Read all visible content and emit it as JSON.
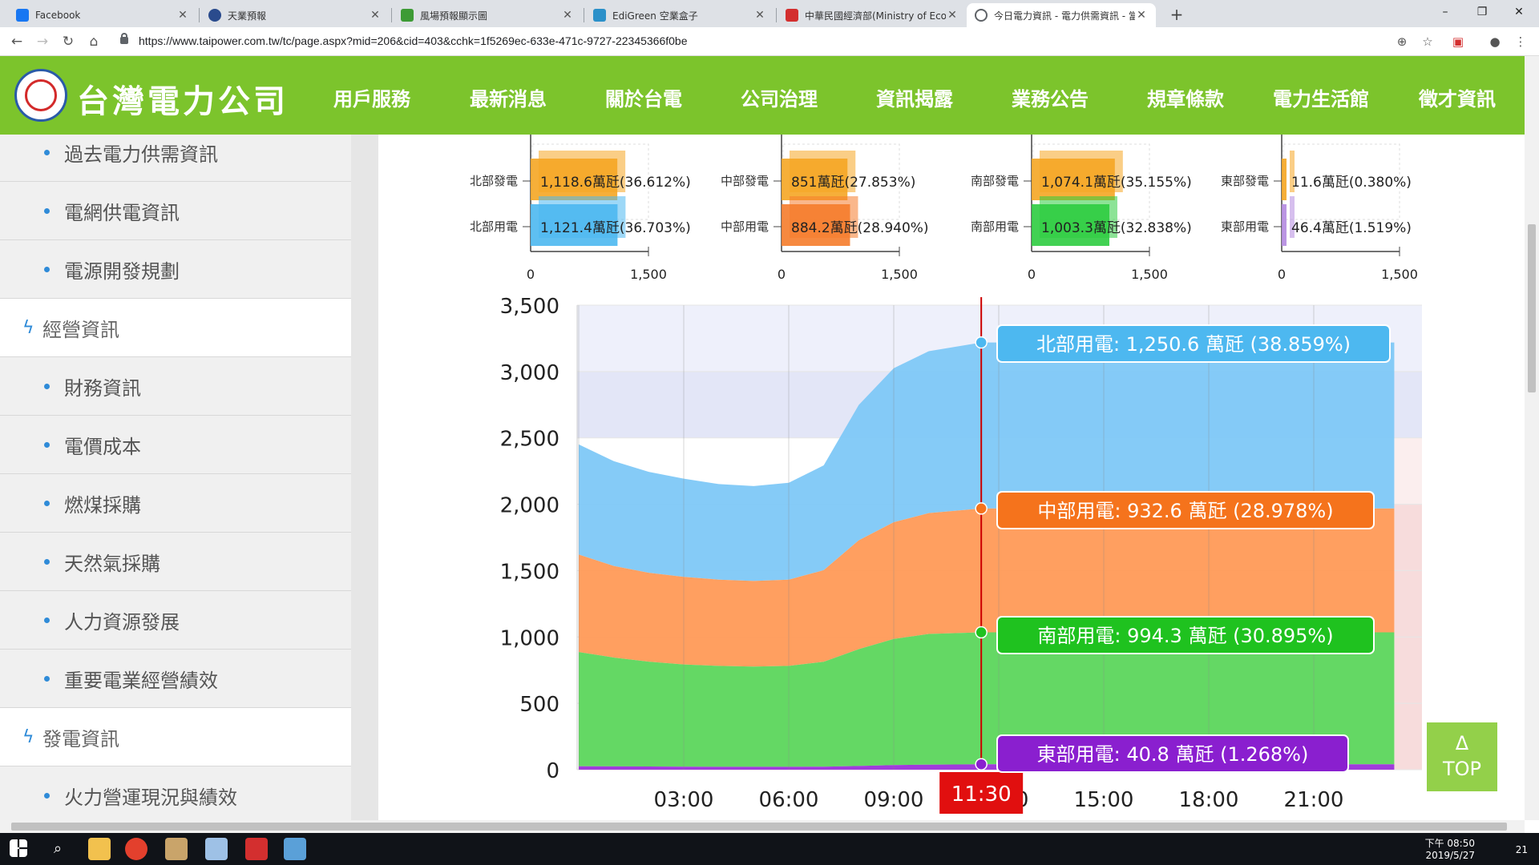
{
  "browser": {
    "tabs": [
      {
        "label": "Facebook",
        "color": "#1877f2"
      },
      {
        "label": "天業預報",
        "color": "#2a4b8d"
      },
      {
        "label": "風場預報顯示圖",
        "color": "#3d9b35"
      },
      {
        "label": "EdiGreen 空業盒子",
        "color": "#2b90c9"
      },
      {
        "label": "中華民國經濟部(Ministry of Eco",
        "color": "#d32f2f"
      },
      {
        "label": "今日電力資訊 - 電力供需資訊 - 當",
        "color": "#5f6368"
      }
    ],
    "new_tab": "+",
    "url": "https://www.taipower.com.tw/tc/page.aspx?mid=206&cid=403&cchk=1f5269ec-633e-471c-9727-22345366f0be",
    "window_controls": [
      "–",
      "❐",
      "✕"
    ]
  },
  "header": {
    "logo_text": "台灣電力公司",
    "nav": [
      "用戶服務",
      "最新消息",
      "關於台電",
      "公司治理",
      "資訊揭露",
      "業務公告",
      "規章條款",
      "電力生活館",
      "徵才資訊"
    ]
  },
  "sidebar": {
    "items": [
      {
        "label": "過去電力供需資訊",
        "type": "sub"
      },
      {
        "label": "電網供電資訊",
        "type": "sub"
      },
      {
        "label": "電源開發規劃",
        "type": "sub"
      },
      {
        "label": "經營資訊",
        "type": "section"
      },
      {
        "label": "財務資訊",
        "type": "sub"
      },
      {
        "label": "電價成本",
        "type": "sub"
      },
      {
        "label": "燃煤採購",
        "type": "sub"
      },
      {
        "label": "天然氣採購",
        "type": "sub"
      },
      {
        "label": "人力資源發展",
        "type": "sub"
      },
      {
        "label": "重要電業經營績效",
        "type": "sub"
      },
      {
        "label": "發電資訊",
        "type": "section"
      },
      {
        "label": "火力營運現況與績效",
        "type": "sub"
      }
    ]
  },
  "chart_data": [
    {
      "type": "bar",
      "panels": [
        {
          "bars": [
            {
              "label": "北部發電",
              "value": 1118.6,
              "text": "1,118.6萬瓩(36.612%)",
              "color": "#f5a623"
            },
            {
              "label": "北部用電",
              "value": 1121.4,
              "text": "1,121.4萬瓩(36.703%)",
              "color": "#4db8f0"
            }
          ],
          "ticks": [
            "0",
            "1,500"
          ]
        },
        {
          "bars": [
            {
              "label": "中部發電",
              "value": 851,
              "text": "851萬瓩(27.853%)",
              "color": "#f5a623"
            },
            {
              "label": "中部用電",
              "value": 884.2,
              "text": "884.2萬瓩(28.940%)",
              "color": "#f57c2b"
            }
          ],
          "ticks": [
            "0",
            "1,500"
          ]
        },
        {
          "bars": [
            {
              "label": "南部發電",
              "value": 1074.1,
              "text": "1,074.1萬瓩(35.155%)",
              "color": "#f5a623"
            },
            {
              "label": "南部用電",
              "value": 1003.3,
              "text": "1,003.3萬瓩(32.838%)",
              "color": "#2ecc40"
            }
          ],
          "ticks": [
            "0",
            "1,500"
          ]
        },
        {
          "bars": [
            {
              "label": "東部發電",
              "value": 11.6,
              "text": "11.6萬瓩(0.380%)",
              "color": "#f5a623"
            },
            {
              "label": "東部用電",
              "value": 46.4,
              "text": "46.4萬瓩(1.519%)",
              "color": "#b48be0"
            }
          ],
          "ticks": [
            "0",
            "1,500"
          ]
        }
      ],
      "xlim": [
        0,
        1500
      ]
    },
    {
      "type": "area",
      "stacked": true,
      "ylim": [
        0,
        3500
      ],
      "yticks": [
        "0",
        "500",
        "1,000",
        "1,500",
        "2,000",
        "2,500",
        "3,000",
        "3,500"
      ],
      "xticks": [
        "03:00",
        "06:00",
        "09:00",
        "12:00",
        "15:00",
        "18:00",
        "21:00"
      ],
      "x_hours": [
        0,
        1,
        2,
        3,
        4,
        5,
        6,
        7,
        8,
        9,
        10,
        11.5
      ],
      "series": [
        {
          "name": "東部用電",
          "color": "#9b30d9",
          "values": [
            26,
            25,
            24,
            23,
            22,
            22,
            22,
            23,
            28,
            35,
            38,
            41
          ]
        },
        {
          "name": "南部用電",
          "color": "#5cd65c",
          "values": [
            860,
            820,
            790,
            770,
            760,
            755,
            760,
            790,
            880,
            950,
            985,
            994
          ]
        },
        {
          "name": "中部用電",
          "color": "#ff9a57",
          "values": [
            735,
            690,
            670,
            660,
            650,
            645,
            650,
            690,
            820,
            880,
            910,
            933
          ]
        },
        {
          "name": "北部用電",
          "color": "#7ec8f7",
          "values": [
            830,
            790,
            760,
            740,
            720,
            715,
            730,
            790,
            1020,
            1160,
            1220,
            1251
          ]
        }
      ],
      "cursor": {
        "time": "11:30"
      },
      "tooltips": [
        {
          "text": "北部用電: 1,250.6 萬瓩 (38.859%)",
          "color": "#4db8f0"
        },
        {
          "text": "中部用電: 932.6 萬瓩 (28.978%)",
          "color": "#f5731c"
        },
        {
          "text": "南部用電: 994.3 萬瓩 (30.895%)",
          "color": "#1fc21f"
        },
        {
          "text": "東部用電: 40.8 萬瓩 (1.268%)",
          "color": "#8a1fcf"
        }
      ],
      "background_bands": [
        {
          "from": 2500,
          "to": 3000,
          "color": "#e3e6f7"
        },
        {
          "from": 3000,
          "to": 3500,
          "color": "#eef0fb"
        }
      ]
    }
  ],
  "to_top": {
    "arrow": "Δ",
    "label": "TOP"
  },
  "taskbar": {
    "time": "下午 08:50",
    "date": "2019/5/27",
    "notif": "21"
  }
}
